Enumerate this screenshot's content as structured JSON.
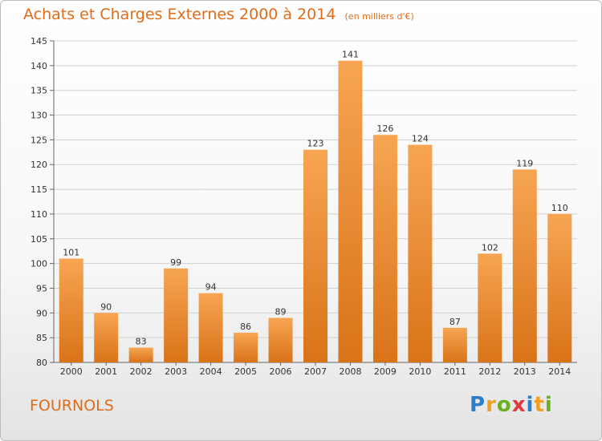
{
  "header": {
    "title": "Achats et Charges Externes 2000 à 2014",
    "unit": "(en milliers d'€)"
  },
  "commune": "FOURNOLS",
  "logo": {
    "text": "Proxiti",
    "colors": [
      "#2a7fc9",
      "#f0a020",
      "#6ab023",
      "#e03a3a",
      "#2a7fc9",
      "#f0a020",
      "#6ab023"
    ]
  },
  "chart_data": {
    "type": "bar",
    "categories": [
      "2000",
      "2001",
      "2002",
      "2003",
      "2004",
      "2005",
      "2006",
      "2007",
      "2008",
      "2009",
      "2010",
      "2011",
      "2012",
      "2013",
      "2014"
    ],
    "values": [
      101,
      90,
      83,
      99,
      94,
      86,
      89,
      123,
      141,
      126,
      124,
      87,
      102,
      119,
      110
    ],
    "ylim": [
      80,
      145
    ],
    "yticks": [
      80,
      85,
      90,
      95,
      100,
      105,
      110,
      115,
      120,
      125,
      130,
      135,
      140,
      145
    ],
    "grid": true,
    "bar_color": "#f0922e"
  }
}
